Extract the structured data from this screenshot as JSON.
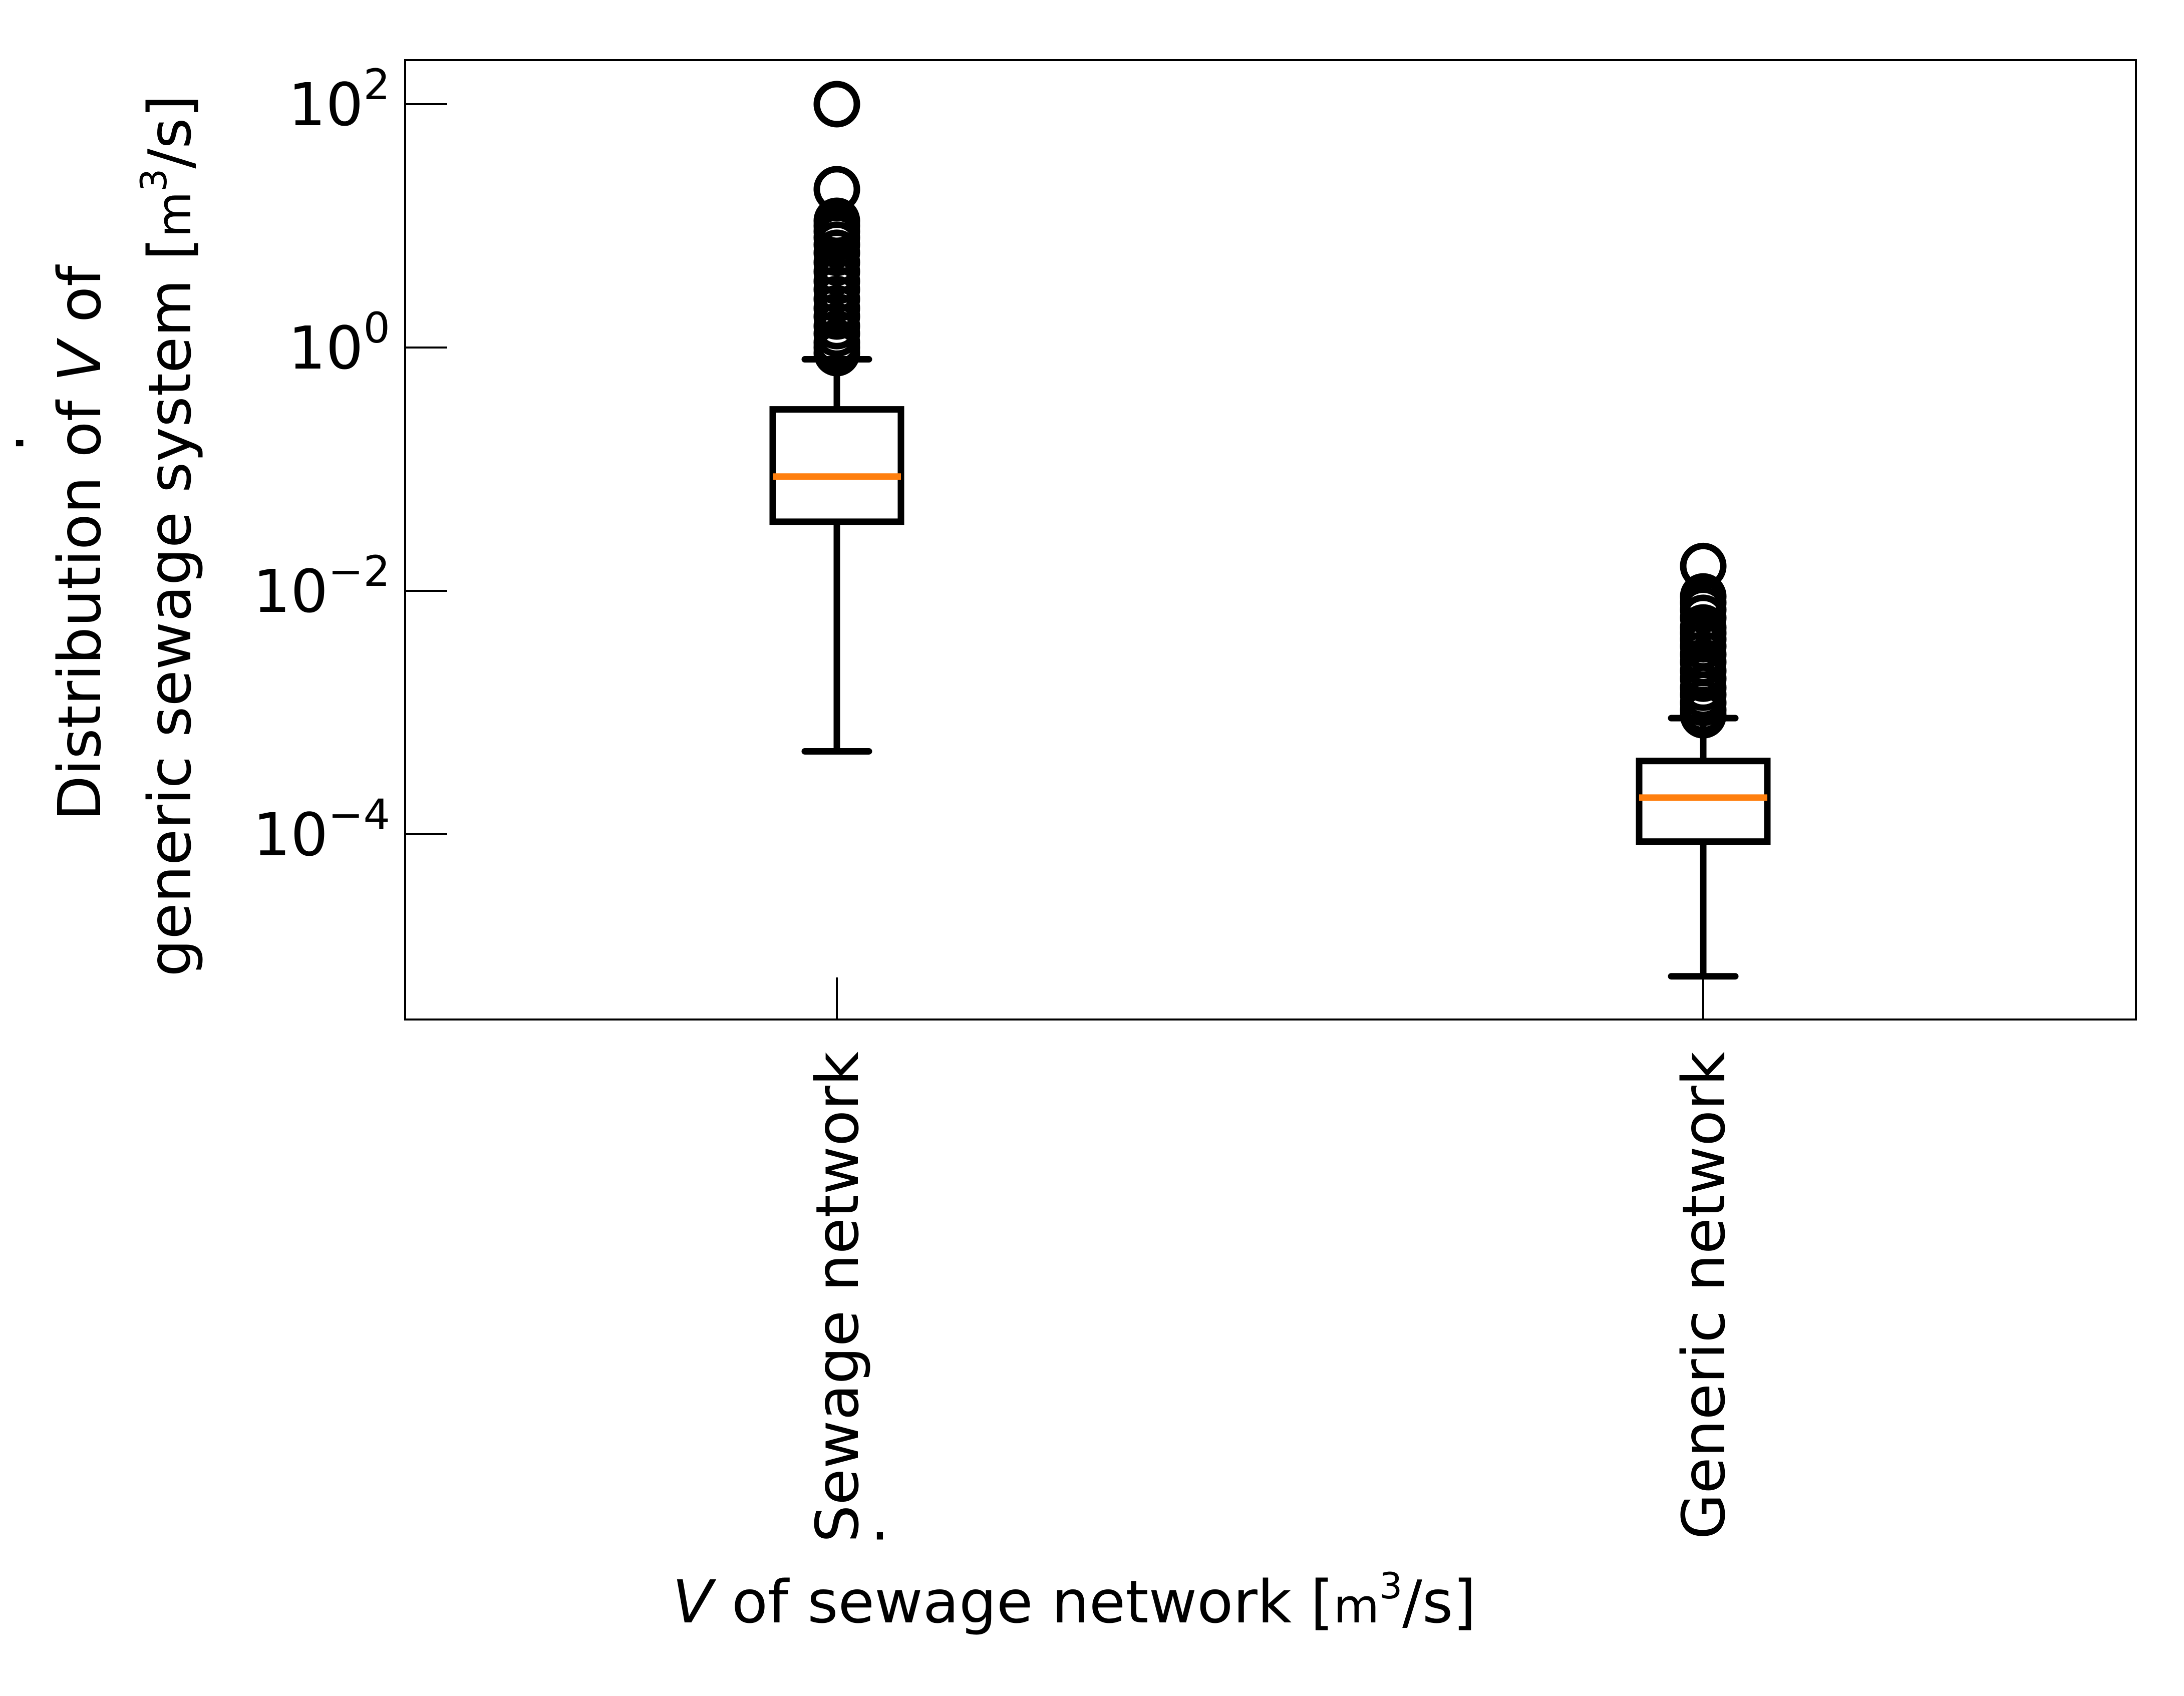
{
  "chart_data": {
    "type": "box",
    "title": "",
    "xlabel": {
      "prefix": "V",
      "middle": " of sewage network [",
      "unit_base": "m",
      "unit_exp": "3",
      "unit_tail": "/s]"
    },
    "ylabel": {
      "line1_start": "Distribution of ",
      "line1_var": "V",
      "line1_end": " of",
      "line2": "generic sewage system [",
      "unit_base": "m",
      "unit_exp": "3",
      "unit_tail": "/s]"
    },
    "y_scale": "log",
    "ylim": [
      2.5e-06,
      150
    ],
    "y_ticks": [
      {
        "base": "10",
        "exp": "2",
        "value": 100
      },
      {
        "base": "10",
        "exp": "0",
        "value": 1
      },
      {
        "base": "10",
        "exp": "−2",
        "value": 0.01
      },
      {
        "base": "10",
        "exp": "−4",
        "value": 0.0001
      }
    ],
    "categories": [
      "Sewage network",
      "Generic network"
    ],
    "boxes": [
      {
        "label": "Sewage network",
        "whisker_low": 0.00048,
        "q1": 0.037,
        "median": 0.087,
        "q3": 0.31,
        "whisker_high": 0.8,
        "outliers": [
          100,
          20,
          11,
          10,
          9,
          8,
          7,
          6,
          5,
          4.2,
          3.5,
          3,
          2.5,
          2.1,
          1.8,
          1.5,
          1.3,
          1.1,
          1.0,
          0.9
        ]
      },
      {
        "label": "Generic network",
        "whisker_low": 6.8e-06,
        "q1": 8.7e-05,
        "median": 0.0002,
        "q3": 0.0004,
        "whisker_high": 0.0009,
        "outliers": [
          0.016,
          0.009,
          0.008,
          0.007,
          0.006,
          0.005,
          0.0045,
          0.004,
          0.0035,
          0.003,
          0.0026,
          0.0022,
          0.0019,
          0.0016,
          0.0014,
          0.0012,
          0.00105,
          0.00095
        ]
      }
    ],
    "median_color": "#ff7f0e",
    "box_color": "#000000",
    "grid": false,
    "legend": "none"
  }
}
